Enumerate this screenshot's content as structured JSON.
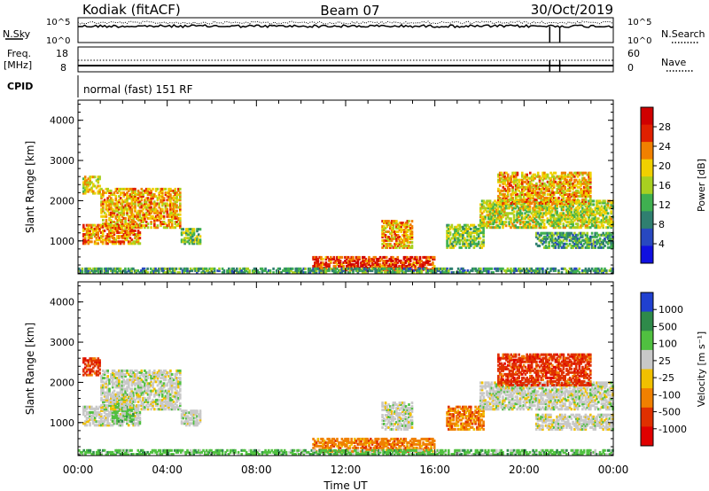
{
  "header": {
    "station": "Kodiak (fitACF)",
    "beam": "Beam 07",
    "date": "30/Oct/2019"
  },
  "top_panels": {
    "nsky_label": "N.Sky",
    "nsky_ticks": [
      "10^5",
      "10^0"
    ],
    "nsearch_label": "N.Search",
    "nsearch_ticks": [
      "10^5",
      "10^0"
    ],
    "freq_label": "Freq.",
    "freq_unit": "[MHz]",
    "freq_ticks": [
      "18",
      "8"
    ],
    "nave_label": "Nave",
    "nave_ticks": [
      "60",
      "0"
    ],
    "cpid_label": "CPID",
    "cpid_text": "normal (fast) 151 RF"
  },
  "chart_data": [
    {
      "type": "heatmap",
      "panel": "power",
      "ylabel": "Slant Range [km]",
      "xlabel": "",
      "x_range_hours": [
        0,
        24
      ],
      "ylim": [
        180,
        4500
      ],
      "yticks": [
        "1000",
        "2000",
        "3000",
        "4000"
      ],
      "colorbar": {
        "label": "Power [dB]",
        "ticks": [
          "28",
          "24",
          "20",
          "16",
          "12",
          "8",
          "4"
        ],
        "range": [
          0,
          30
        ],
        "colors": [
          "#1010e0",
          "#2848c0",
          "#2f7f70",
          "#3fb050",
          "#a8d020",
          "#f0d000",
          "#f08000",
          "#e02000",
          "#d00000"
        ]
      },
      "echo_regions": [
        {
          "t0": 0.2,
          "t1": 1.0,
          "r0": 2150,
          "r1": 2600,
          "level": 18
        },
        {
          "t0": 0.2,
          "t1": 2.8,
          "r0": 900,
          "r1": 1400,
          "level": 22
        },
        {
          "t0": 1.0,
          "t1": 4.6,
          "r0": 1300,
          "r1": 2300,
          "level": 20
        },
        {
          "t0": 4.6,
          "t1": 5.5,
          "r0": 900,
          "r1": 1300,
          "level": 14
        },
        {
          "t0": 13.6,
          "t1": 15.0,
          "r0": 800,
          "r1": 1500,
          "level": 20
        },
        {
          "t0": 10.5,
          "t1": 16.0,
          "r0": 250,
          "r1": 600,
          "level": 26
        },
        {
          "t0": 16.5,
          "t1": 18.2,
          "r0": 800,
          "r1": 1400,
          "level": 14
        },
        {
          "t0": 18.0,
          "t1": 24.0,
          "r0": 1300,
          "r1": 2000,
          "level": 16
        },
        {
          "t0": 18.8,
          "t1": 23.0,
          "r0": 1900,
          "r1": 2700,
          "level": 20
        },
        {
          "t0": 20.5,
          "t1": 24.0,
          "r0": 800,
          "r1": 1200,
          "level": 10
        },
        {
          "t0": 0.0,
          "t1": 24.0,
          "r0": 180,
          "r1": 320,
          "level": 10
        }
      ]
    },
    {
      "type": "heatmap",
      "panel": "velocity",
      "ylabel": "Slant Range [km]",
      "xlabel": "Time UT",
      "x_range_hours": [
        0,
        24
      ],
      "xticks": [
        "00:00",
        "04:00",
        "08:00",
        "12:00",
        "16:00",
        "20:00",
        "00:00"
      ],
      "ylim": [
        180,
        4500
      ],
      "yticks": [
        "1000",
        "2000",
        "3000",
        "4000"
      ],
      "colorbar": {
        "label": "Velocity [m s⁻¹]",
        "ticks": [
          "1000",
          "500",
          "100",
          "25",
          "-25",
          "-100",
          "-500",
          "-1000"
        ],
        "colors": [
          "#2040d0",
          "#2e8a4a",
          "#50c040",
          "#c8c8c8",
          "#f0c000",
          "#f08000",
          "#e03000",
          "#e00000"
        ]
      },
      "echo_regions": [
        {
          "t0": 0.2,
          "t1": 1.0,
          "r0": 2150,
          "r1": 2600,
          "class": "-500"
        },
        {
          "t0": 0.2,
          "t1": 2.8,
          "r0": 900,
          "r1": 1400,
          "class": "25"
        },
        {
          "t0": 1.5,
          "t1": 2.5,
          "r0": 1000,
          "r1": 1700,
          "class": "100"
        },
        {
          "t0": 1.0,
          "t1": 4.6,
          "r0": 1300,
          "r1": 2300,
          "class": "25"
        },
        {
          "t0": 4.6,
          "t1": 5.5,
          "r0": 900,
          "r1": 1300,
          "class": "25"
        },
        {
          "t0": 13.6,
          "t1": 15.0,
          "r0": 800,
          "r1": 1500,
          "class": "25"
        },
        {
          "t0": 10.5,
          "t1": 16.0,
          "r0": 250,
          "r1": 600,
          "class": "-100"
        },
        {
          "t0": 16.5,
          "t1": 18.2,
          "r0": 800,
          "r1": 1400,
          "class": "-100"
        },
        {
          "t0": 18.0,
          "t1": 24.0,
          "r0": 1300,
          "r1": 2000,
          "class": "25"
        },
        {
          "t0": 18.8,
          "t1": 23.0,
          "r0": 1900,
          "r1": 2700,
          "class": "-500"
        },
        {
          "t0": 20.5,
          "t1": 24.0,
          "r0": 800,
          "r1": 1200,
          "class": "25"
        },
        {
          "t0": 0.0,
          "t1": 24.0,
          "r0": 180,
          "r1": 320,
          "class": "100"
        }
      ]
    }
  ]
}
